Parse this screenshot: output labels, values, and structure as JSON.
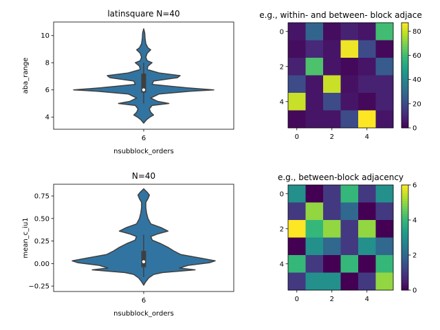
{
  "chart_data": [
    {
      "type": "violin",
      "title": "latinsquare N=40",
      "xlabel": "nsubblock_orders",
      "ylabel": "aba_range",
      "categories": [
        "6"
      ],
      "ylim": [
        3.1,
        11.0
      ],
      "yticks": [
        4,
        6,
        8,
        10
      ],
      "grid": false,
      "color": "#3274a1",
      "box": {
        "q1": 5.8,
        "median": 6.0,
        "q3": 7.2,
        "whisker_low": 5.0,
        "whisker_high": 8.0
      },
      "density": [
        [
          3.55,
          0.0
        ],
        [
          3.8,
          0.04
        ],
        [
          4.0,
          0.09
        ],
        [
          4.15,
          0.14
        ],
        [
          4.35,
          0.1
        ],
        [
          4.6,
          0.08
        ],
        [
          4.85,
          0.12
        ],
        [
          5.0,
          0.36
        ],
        [
          5.15,
          0.2
        ],
        [
          5.4,
          0.1
        ],
        [
          5.7,
          0.22
        ],
        [
          5.9,
          0.66
        ],
        [
          6.0,
          1.0
        ],
        [
          6.15,
          0.62
        ],
        [
          6.4,
          0.12
        ],
        [
          6.65,
          0.14
        ],
        [
          6.9,
          0.48
        ],
        [
          7.05,
          0.52
        ],
        [
          7.25,
          0.22
        ],
        [
          7.5,
          0.05
        ],
        [
          7.75,
          0.06
        ],
        [
          8.0,
          0.12
        ],
        [
          8.15,
          0.05
        ],
        [
          8.4,
          0.03
        ],
        [
          8.7,
          0.05
        ],
        [
          8.95,
          0.1
        ],
        [
          9.1,
          0.06
        ],
        [
          9.4,
          0.03
        ],
        [
          9.8,
          0.02
        ],
        [
          10.2,
          0.015
        ],
        [
          10.5,
          0.0
        ]
      ]
    },
    {
      "type": "heatmap",
      "title": "e.g., within- and between- block adjace",
      "x_ticks": [
        0,
        2,
        4
      ],
      "y_ticks": [
        0,
        2,
        4
      ],
      "colormap": "viridis",
      "colorbar_range": [
        0,
        87
      ],
      "colorbar_ticks": [
        0,
        20,
        40,
        60,
        80
      ],
      "values": [
        [
          5,
          28,
          3,
          8,
          5,
          60
        ],
        [
          3,
          10,
          5,
          85,
          20,
          2
        ],
        [
          8,
          62,
          5,
          2,
          5,
          25
        ],
        [
          20,
          5,
          80,
          4,
          8,
          8
        ],
        [
          80,
          5,
          20,
          5,
          2,
          8
        ],
        [
          2,
          5,
          5,
          20,
          87,
          5
        ]
      ]
    },
    {
      "type": "violin",
      "title": "N=40",
      "xlabel": "nsubblock_orders",
      "ylabel": "mean_c_iu1",
      "categories": [
        "6"
      ],
      "ylim": [
        -0.31,
        0.88
      ],
      "yticks": [
        -0.25,
        0.0,
        0.25,
        0.5,
        0.75
      ],
      "grid": false,
      "color": "#3274a1",
      "box": {
        "q1": -0.04,
        "median": 0.02,
        "q3": 0.14,
        "whisker_low": -0.15,
        "whisker_high": 0.32
      },
      "density": [
        [
          -0.24,
          0.0
        ],
        [
          -0.2,
          0.03
        ],
        [
          -0.16,
          0.07
        ],
        [
          -0.12,
          0.14
        ],
        [
          -0.1,
          0.26
        ],
        [
          -0.07,
          0.72
        ],
        [
          -0.05,
          0.5
        ],
        [
          -0.02,
          0.62
        ],
        [
          0.01,
          0.92
        ],
        [
          0.03,
          1.0
        ],
        [
          0.06,
          0.8
        ],
        [
          0.1,
          0.52
        ],
        [
          0.14,
          0.42
        ],
        [
          0.18,
          0.34
        ],
        [
          0.22,
          0.24
        ],
        [
          0.26,
          0.12
        ],
        [
          0.3,
          0.1
        ],
        [
          0.33,
          0.2
        ],
        [
          0.36,
          0.34
        ],
        [
          0.4,
          0.24
        ],
        [
          0.44,
          0.1
        ],
        [
          0.5,
          0.06
        ],
        [
          0.56,
          0.04
        ],
        [
          0.62,
          0.03
        ],
        [
          0.68,
          0.03
        ],
        [
          0.72,
          0.06
        ],
        [
          0.76,
          0.08
        ],
        [
          0.79,
          0.05
        ],
        [
          0.83,
          0.0
        ]
      ]
    },
    {
      "type": "heatmap",
      "title": "e.g., between-block adjacency",
      "x_ticks": [
        0,
        2,
        4
      ],
      "y_ticks": [
        0,
        2,
        4
      ],
      "colormap": "viridis",
      "colorbar_range": [
        0,
        6
      ],
      "colorbar_ticks": [
        0,
        2,
        4,
        6
      ],
      "values": [
        [
          3,
          0,
          1,
          4,
          1,
          3
        ],
        [
          1,
          5,
          1,
          2,
          0,
          1
        ],
        [
          6,
          4,
          5,
          1,
          5,
          0
        ],
        [
          0,
          3,
          2,
          1,
          3,
          2
        ],
        [
          4,
          1,
          0,
          4,
          0,
          4
        ],
        [
          1,
          3,
          3,
          0,
          1,
          5
        ]
      ]
    }
  ]
}
